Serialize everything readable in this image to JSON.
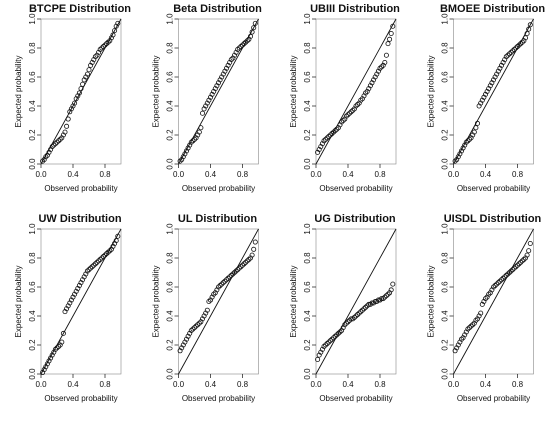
{
  "figure": {
    "x_ticks": [
      "0.0",
      "0.4",
      "0.8"
    ],
    "y_ticks": [
      "0.0",
      "0.2",
      "0.4",
      "0.6",
      "0.8",
      "1.0"
    ]
  },
  "chart_data": [
    {
      "type": "scatter",
      "title": "BTCPE Distribution",
      "xlabel": "Observed probability",
      "ylabel": "Expected probability",
      "xlim": [
        0,
        1
      ],
      "ylim": [
        0,
        1
      ],
      "reference_line": "y = x",
      "x": [
        0.02,
        0.04,
        0.06,
        0.08,
        0.1,
        0.12,
        0.14,
        0.16,
        0.18,
        0.2,
        0.22,
        0.24,
        0.26,
        0.28,
        0.3,
        0.32,
        0.34,
        0.36,
        0.38,
        0.4,
        0.42,
        0.44,
        0.46,
        0.48,
        0.5,
        0.52,
        0.54,
        0.56,
        0.58,
        0.6,
        0.62,
        0.64,
        0.66,
        0.68,
        0.7,
        0.72,
        0.74,
        0.76,
        0.78,
        0.8,
        0.82,
        0.84,
        0.86,
        0.88,
        0.9,
        0.92,
        0.94,
        0.96
      ],
      "y": [
        0.02,
        0.03,
        0.05,
        0.06,
        0.08,
        0.1,
        0.12,
        0.13,
        0.14,
        0.15,
        0.16,
        0.17,
        0.18,
        0.2,
        0.22,
        0.26,
        0.31,
        0.36,
        0.38,
        0.4,
        0.42,
        0.45,
        0.47,
        0.49,
        0.52,
        0.55,
        0.58,
        0.6,
        0.62,
        0.65,
        0.68,
        0.7,
        0.72,
        0.74,
        0.75,
        0.77,
        0.79,
        0.8,
        0.81,
        0.82,
        0.83,
        0.84,
        0.85,
        0.87,
        0.89,
        0.92,
        0.95,
        0.97
      ]
    },
    {
      "type": "scatter",
      "title": "Beta Distribution",
      "xlabel": "Observed probability",
      "ylabel": "Expected probability",
      "xlim": [
        0,
        1
      ],
      "ylim": [
        0,
        1
      ],
      "reference_line": "y = x",
      "x": [
        0.02,
        0.04,
        0.06,
        0.08,
        0.1,
        0.12,
        0.14,
        0.16,
        0.18,
        0.2,
        0.22,
        0.24,
        0.26,
        0.28,
        0.3,
        0.32,
        0.34,
        0.36,
        0.38,
        0.4,
        0.42,
        0.44,
        0.46,
        0.48,
        0.5,
        0.52,
        0.54,
        0.56,
        0.58,
        0.6,
        0.62,
        0.64,
        0.66,
        0.68,
        0.7,
        0.72,
        0.74,
        0.76,
        0.78,
        0.8,
        0.82,
        0.84,
        0.86,
        0.88,
        0.9,
        0.92,
        0.94,
        0.96
      ],
      "y": [
        0.02,
        0.03,
        0.05,
        0.07,
        0.09,
        0.11,
        0.13,
        0.15,
        0.16,
        0.17,
        0.18,
        0.2,
        0.22,
        0.25,
        0.35,
        0.38,
        0.4,
        0.42,
        0.44,
        0.46,
        0.48,
        0.5,
        0.52,
        0.54,
        0.56,
        0.58,
        0.6,
        0.62,
        0.64,
        0.66,
        0.68,
        0.7,
        0.72,
        0.73,
        0.75,
        0.77,
        0.79,
        0.8,
        0.81,
        0.82,
        0.83,
        0.84,
        0.85,
        0.86,
        0.88,
        0.91,
        0.94,
        0.97
      ]
    },
    {
      "type": "scatter",
      "title": "UBIII Distribution",
      "xlabel": "Observed probability",
      "ylabel": "Expected probability",
      "xlim": [
        0,
        1
      ],
      "ylim": [
        0,
        1
      ],
      "reference_line": "y = x",
      "x": [
        0.02,
        0.04,
        0.06,
        0.08,
        0.1,
        0.12,
        0.14,
        0.16,
        0.18,
        0.2,
        0.22,
        0.24,
        0.26,
        0.28,
        0.3,
        0.32,
        0.34,
        0.36,
        0.38,
        0.4,
        0.42,
        0.44,
        0.46,
        0.48,
        0.5,
        0.52,
        0.54,
        0.56,
        0.58,
        0.6,
        0.62,
        0.64,
        0.66,
        0.68,
        0.7,
        0.72,
        0.74,
        0.76,
        0.78,
        0.8,
        0.82,
        0.84,
        0.86,
        0.88,
        0.9,
        0.92,
        0.94,
        0.96
      ],
      "y": [
        0.08,
        0.1,
        0.12,
        0.14,
        0.16,
        0.17,
        0.18,
        0.19,
        0.2,
        0.21,
        0.22,
        0.23,
        0.24,
        0.25,
        0.27,
        0.29,
        0.3,
        0.31,
        0.33,
        0.34,
        0.35,
        0.36,
        0.37,
        0.38,
        0.4,
        0.41,
        0.42,
        0.44,
        0.45,
        0.47,
        0.49,
        0.5,
        0.52,
        0.54,
        0.56,
        0.58,
        0.6,
        0.62,
        0.64,
        0.66,
        0.67,
        0.68,
        0.7,
        0.75,
        0.83,
        0.86,
        0.9,
        0.95
      ]
    },
    {
      "type": "scatter",
      "title": "BMOEE Distribution",
      "xlabel": "Observed probability",
      "ylabel": "Expected probability",
      "xlim": [
        0,
        1
      ],
      "ylim": [
        0,
        1
      ],
      "reference_line": "y = x",
      "x": [
        0.02,
        0.04,
        0.06,
        0.08,
        0.1,
        0.12,
        0.14,
        0.16,
        0.18,
        0.2,
        0.22,
        0.24,
        0.26,
        0.28,
        0.3,
        0.32,
        0.34,
        0.36,
        0.38,
        0.4,
        0.42,
        0.44,
        0.46,
        0.48,
        0.5,
        0.52,
        0.54,
        0.56,
        0.58,
        0.6,
        0.62,
        0.64,
        0.66,
        0.68,
        0.7,
        0.72,
        0.74,
        0.76,
        0.78,
        0.8,
        0.82,
        0.84,
        0.86,
        0.88,
        0.9,
        0.92,
        0.94,
        0.96
      ],
      "y": [
        0.02,
        0.03,
        0.05,
        0.07,
        0.09,
        0.11,
        0.13,
        0.15,
        0.16,
        0.17,
        0.18,
        0.2,
        0.22,
        0.25,
        0.28,
        0.4,
        0.42,
        0.44,
        0.46,
        0.48,
        0.5,
        0.52,
        0.54,
        0.56,
        0.58,
        0.6,
        0.62,
        0.64,
        0.66,
        0.68,
        0.7,
        0.72,
        0.74,
        0.75,
        0.76,
        0.77,
        0.78,
        0.79,
        0.8,
        0.81,
        0.82,
        0.83,
        0.84,
        0.85,
        0.87,
        0.9,
        0.93,
        0.96
      ]
    },
    {
      "type": "scatter",
      "title": "UW Distribution",
      "xlabel": "Observed probability",
      "ylabel": "Expected probability",
      "xlim": [
        0,
        1
      ],
      "ylim": [
        0,
        1
      ],
      "reference_line": "y = x",
      "x": [
        0.02,
        0.04,
        0.06,
        0.08,
        0.1,
        0.12,
        0.14,
        0.16,
        0.18,
        0.2,
        0.22,
        0.24,
        0.26,
        0.28,
        0.3,
        0.32,
        0.34,
        0.36,
        0.38,
        0.4,
        0.42,
        0.44,
        0.46,
        0.48,
        0.5,
        0.52,
        0.54,
        0.56,
        0.58,
        0.6,
        0.62,
        0.64,
        0.66,
        0.68,
        0.7,
        0.72,
        0.74,
        0.76,
        0.78,
        0.8,
        0.82,
        0.84,
        0.86,
        0.88,
        0.9,
        0.92,
        0.94,
        0.96
      ],
      "y": [
        0.01,
        0.03,
        0.05,
        0.07,
        0.09,
        0.11,
        0.13,
        0.15,
        0.17,
        0.18,
        0.19,
        0.2,
        0.22,
        0.28,
        0.43,
        0.45,
        0.47,
        0.49,
        0.51,
        0.53,
        0.55,
        0.57,
        0.59,
        0.61,
        0.63,
        0.65,
        0.67,
        0.69,
        0.71,
        0.72,
        0.73,
        0.74,
        0.75,
        0.76,
        0.77,
        0.78,
        0.79,
        0.8,
        0.81,
        0.82,
        0.83,
        0.84,
        0.85,
        0.86,
        0.88,
        0.9,
        0.92,
        0.95
      ]
    },
    {
      "type": "scatter",
      "title": "UL Distribution",
      "xlabel": "Observed probability",
      "ylabel": "Expected probability",
      "xlim": [
        0,
        1
      ],
      "ylim": [
        0,
        1
      ],
      "reference_line": "y = x",
      "x": [
        0.02,
        0.04,
        0.06,
        0.08,
        0.1,
        0.12,
        0.14,
        0.16,
        0.18,
        0.2,
        0.22,
        0.24,
        0.26,
        0.28,
        0.3,
        0.32,
        0.34,
        0.36,
        0.38,
        0.4,
        0.42,
        0.44,
        0.46,
        0.48,
        0.5,
        0.52,
        0.54,
        0.56,
        0.58,
        0.6,
        0.62,
        0.64,
        0.66,
        0.68,
        0.7,
        0.72,
        0.74,
        0.76,
        0.78,
        0.8,
        0.82,
        0.84,
        0.86,
        0.88,
        0.9,
        0.92,
        0.94,
        0.96
      ],
      "y": [
        0.16,
        0.18,
        0.2,
        0.22,
        0.24,
        0.26,
        0.28,
        0.3,
        0.31,
        0.32,
        0.33,
        0.34,
        0.35,
        0.36,
        0.38,
        0.4,
        0.42,
        0.44,
        0.5,
        0.51,
        0.53,
        0.55,
        0.56,
        0.58,
        0.6,
        0.61,
        0.62,
        0.63,
        0.64,
        0.65,
        0.66,
        0.67,
        0.68,
        0.69,
        0.7,
        0.71,
        0.72,
        0.73,
        0.74,
        0.75,
        0.76,
        0.77,
        0.78,
        0.79,
        0.8,
        0.82,
        0.86,
        0.91
      ]
    },
    {
      "type": "scatter",
      "title": "UG Distribution",
      "xlabel": "Observed probability",
      "ylabel": "Expected probability",
      "xlim": [
        0,
        1
      ],
      "ylim": [
        0,
        1
      ],
      "reference_line": "y = x",
      "x": [
        0.02,
        0.04,
        0.06,
        0.08,
        0.1,
        0.12,
        0.14,
        0.16,
        0.18,
        0.2,
        0.22,
        0.24,
        0.26,
        0.28,
        0.3,
        0.32,
        0.34,
        0.36,
        0.38,
        0.4,
        0.42,
        0.44,
        0.46,
        0.48,
        0.5,
        0.52,
        0.54,
        0.56,
        0.58,
        0.6,
        0.62,
        0.64,
        0.66,
        0.68,
        0.7,
        0.72,
        0.74,
        0.76,
        0.78,
        0.8,
        0.82,
        0.84,
        0.86,
        0.88,
        0.9,
        0.92,
        0.94,
        0.96
      ],
      "y": [
        0.1,
        0.13,
        0.15,
        0.17,
        0.19,
        0.2,
        0.21,
        0.22,
        0.23,
        0.24,
        0.25,
        0.26,
        0.27,
        0.28,
        0.29,
        0.3,
        0.32,
        0.34,
        0.35,
        0.36,
        0.37,
        0.38,
        0.38,
        0.39,
        0.4,
        0.41,
        0.42,
        0.43,
        0.44,
        0.45,
        0.46,
        0.47,
        0.48,
        0.48,
        0.49,
        0.49,
        0.5,
        0.5,
        0.51,
        0.51,
        0.52,
        0.52,
        0.53,
        0.54,
        0.55,
        0.56,
        0.58,
        0.62
      ]
    },
    {
      "type": "scatter",
      "title": "UISDL Distribution",
      "xlabel": "Observed probability",
      "ylabel": "Expected probability",
      "xlim": [
        0,
        1
      ],
      "ylim": [
        0,
        1
      ],
      "reference_line": "y = x",
      "x": [
        0.02,
        0.04,
        0.06,
        0.08,
        0.1,
        0.12,
        0.14,
        0.16,
        0.18,
        0.2,
        0.22,
        0.24,
        0.26,
        0.28,
        0.3,
        0.32,
        0.34,
        0.36,
        0.38,
        0.4,
        0.42,
        0.44,
        0.46,
        0.48,
        0.5,
        0.52,
        0.54,
        0.56,
        0.58,
        0.6,
        0.62,
        0.64,
        0.66,
        0.68,
        0.7,
        0.72,
        0.74,
        0.76,
        0.78,
        0.8,
        0.82,
        0.84,
        0.86,
        0.88,
        0.9,
        0.92,
        0.94,
        0.96
      ],
      "y": [
        0.16,
        0.18,
        0.2,
        0.22,
        0.24,
        0.25,
        0.27,
        0.29,
        0.31,
        0.32,
        0.33,
        0.34,
        0.35,
        0.37,
        0.38,
        0.4,
        0.42,
        0.48,
        0.5,
        0.52,
        0.53,
        0.55,
        0.56,
        0.58,
        0.6,
        0.61,
        0.62,
        0.63,
        0.64,
        0.65,
        0.66,
        0.67,
        0.68,
        0.69,
        0.7,
        0.71,
        0.72,
        0.73,
        0.74,
        0.75,
        0.76,
        0.77,
        0.78,
        0.79,
        0.8,
        0.82,
        0.85,
        0.9
      ]
    }
  ]
}
